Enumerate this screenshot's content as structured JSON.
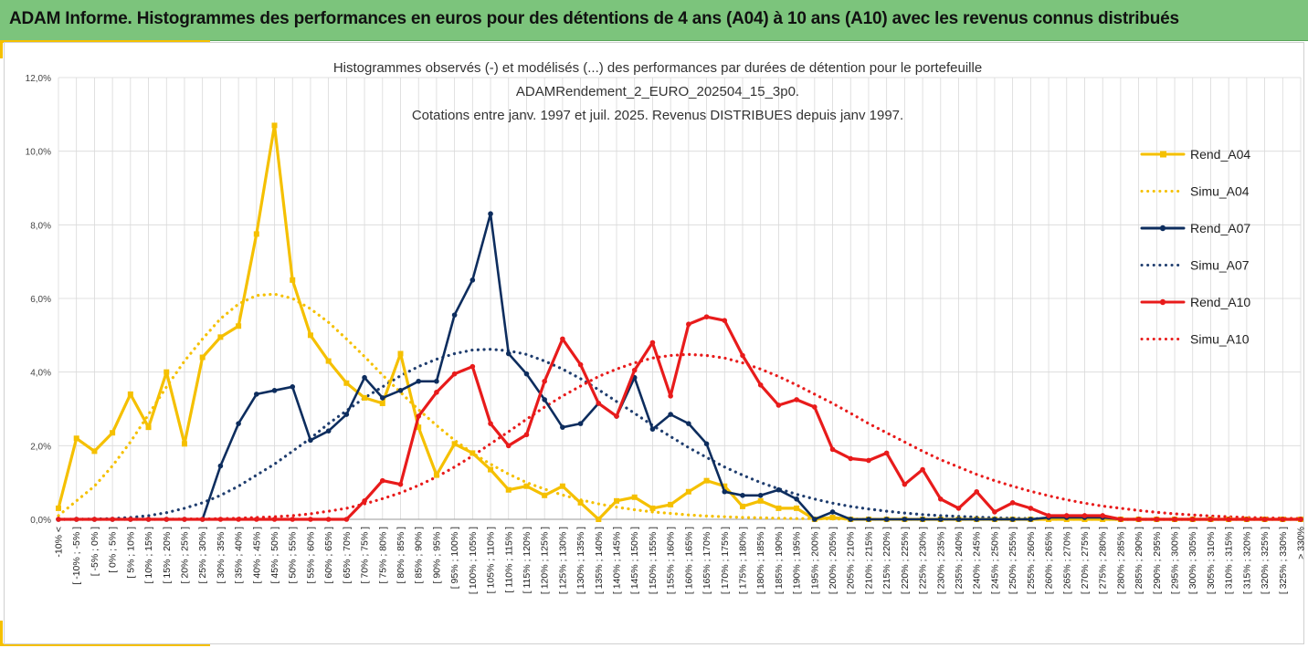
{
  "header": {
    "title": "ADAM Informe. Histogrammes des performances en euros pour des détentions de 4 ans (A04) à 10 ans (A10) avec les revenus connus distribués"
  },
  "chart_data": {
    "type": "line",
    "title_lines": [
      "Histogrammes observés (-) et modélisés (...) des performances par durées de détention pour le portefeuille",
      "ADAMRendement_2_EURO_202504_15_3p0.",
      "Cotations entre janv. 1997 et juil. 2025. Revenus DISTRIBUES depuis janv 1997."
    ],
    "ylim": [
      0,
      12
    ],
    "yticks": [
      "0,0%",
      "2,0%",
      "4,0%",
      "6,0%",
      "8,0%",
      "10,0%",
      "12,0%"
    ],
    "categories": [
      "-10% <",
      "[ -10% ; -5% ]",
      "[ -5% ; 0% ]",
      "[ 0% ; 5% ]",
      "[ 5% ; 10% ]",
      "[ 10% ; 15% ]",
      "[ 15% ; 20% ]",
      "[ 20% ; 25% ]",
      "[ 25% ; 30% ]",
      "[ 30% ; 35% ]",
      "[ 35% ; 40% ]",
      "[ 40% ; 45% ]",
      "[ 45% ; 50% ]",
      "[ 50% ; 55% ]",
      "[ 55% ; 60% ]",
      "[ 60% ; 65% ]",
      "[ 65% ; 70% ]",
      "[ 70% ; 75% ]",
      "[ 75% ; 80% ]",
      "[ 80% ; 85% ]",
      "[ 85% ; 90% ]",
      "[ 90% ; 95% ]",
      "[ 95% ; 100% ]",
      "[ 100% ; 105% ]",
      "[ 105% ; 110% ]",
      "[ 110% ; 115% ]",
      "[ 115% ; 120% ]",
      "[ 120% ; 125% ]",
      "[ 125% ; 130% ]",
      "[ 130% ; 135% ]",
      "[ 135% ; 140% ]",
      "[ 140% ; 145% ]",
      "[ 145% ; 150% ]",
      "[ 150% ; 155% ]",
      "[ 155% ; 160% ]",
      "[ 160% ; 165% ]",
      "[ 165% ; 170% ]",
      "[ 170% ; 175% ]",
      "[ 175% ; 180% ]",
      "[ 180% ; 185% ]",
      "[ 185% ; 190% ]",
      "[ 190% ; 195% ]",
      "[ 195% ; 200% ]",
      "[ 200% ; 205% ]",
      "[ 205% ; 210% ]",
      "[ 210% ; 215% ]",
      "[ 215% ; 220% ]",
      "[ 220% ; 225% ]",
      "[ 225% ; 230% ]",
      "[ 230% ; 235% ]",
      "[ 235% ; 240% ]",
      "[ 240% ; 245% ]",
      "[ 245% ; 250% ]",
      "[ 250% ; 255% ]",
      "[ 255% ; 260% ]",
      "[ 260% ; 265% ]",
      "[ 265% ; 270% ]",
      "[ 270% ; 275% ]",
      "[ 275% ; 280% ]",
      "[ 280% ; 285% ]",
      "[ 285% ; 290% ]",
      "[ 290% ; 295% ]",
      "[ 295% ; 300% ]",
      "[ 300% ; 305% ]",
      "[ 305% ; 310% ]",
      "[ 310% ; 315% ]",
      "[ 315% ; 320% ]",
      "[ 320% ; 325% ]",
      "[ 325% ; 330% ]",
      "> 330%"
    ],
    "legend_position": "right",
    "series": [
      {
        "name": "Rend_A04",
        "style": "solid",
        "color": "#f5c000",
        "marker": "square",
        "values": [
          0.3,
          2.2,
          1.85,
          2.35,
          3.4,
          2.5,
          4.0,
          2.05,
          4.4,
          4.95,
          5.25,
          7.75,
          10.7,
          6.5,
          5.0,
          4.3,
          3.7,
          3.3,
          3.15,
          4.5,
          2.5,
          1.2,
          2.05,
          1.8,
          1.35,
          0.8,
          0.9,
          0.65,
          0.9,
          0.45,
          0.0,
          0.5,
          0.6,
          0.3,
          0.4,
          0.75,
          1.05,
          0.9,
          0.35,
          0.5,
          0.3,
          0.3,
          0.0,
          0.05,
          0.0,
          0.0,
          0.0,
          0.0,
          0.0,
          0.0,
          0.0,
          0.0,
          0.0,
          0.0,
          0.0,
          0.0,
          0.0,
          0.0,
          0.0,
          0.0,
          0.0,
          0.0,
          0.0,
          0.0,
          0.0,
          0.0,
          0.0,
          0.0,
          0.0,
          0.0
        ]
      },
      {
        "name": "Simu_A04",
        "style": "dotted",
        "color": "#f5c000",
        "marker": "none",
        "values": [
          0.1,
          0.5,
          0.9,
          1.45,
          2.1,
          2.85,
          3.6,
          4.3,
          4.9,
          5.45,
          5.85,
          6.08,
          6.12,
          6.0,
          5.72,
          5.35,
          4.9,
          4.42,
          3.92,
          3.45,
          2.98,
          2.55,
          2.15,
          1.8,
          1.5,
          1.23,
          1.0,
          0.82,
          0.66,
          0.53,
          0.42,
          0.33,
          0.26,
          0.2,
          0.16,
          0.12,
          0.09,
          0.07,
          0.05,
          0.04,
          0.03,
          0.02,
          0.02,
          0.01,
          0.01,
          0.0,
          0.0,
          0.0,
          0.0,
          0.0,
          0.0,
          0.0,
          0.0,
          0.0,
          0.0,
          0.0,
          0.0,
          0.0,
          0.0,
          0.0,
          0.0,
          0.0,
          0.0,
          0.0,
          0.0,
          0.0,
          0.0,
          0.0,
          0.0,
          0.0
        ]
      },
      {
        "name": "Rend_A07",
        "style": "solid",
        "color": "#0d2d5e",
        "marker": "circle",
        "values": [
          0.0,
          0.0,
          0.0,
          0.0,
          0.0,
          0.0,
          0.0,
          0.0,
          0.0,
          1.45,
          2.6,
          3.4,
          3.5,
          3.6,
          2.15,
          2.4,
          2.85,
          3.85,
          3.3,
          3.5,
          3.75,
          3.75,
          5.55,
          6.5,
          8.3,
          4.5,
          3.95,
          3.25,
          2.5,
          2.6,
          3.15,
          2.8,
          3.85,
          2.45,
          2.85,
          2.6,
          2.05,
          0.75,
          0.65,
          0.65,
          0.8,
          0.55,
          0.0,
          0.2,
          0.0,
          0.0,
          0.0,
          0.0,
          0.0,
          0.0,
          0.0,
          0.0,
          0.0,
          0.0,
          0.0,
          0.05,
          0.05,
          0.05,
          0.05,
          0.0,
          0.0,
          0.0,
          0.0,
          0.0,
          0.0,
          0.0,
          0.0,
          0.0,
          0.0,
          0.0
        ]
      },
      {
        "name": "Simu_A07",
        "style": "dotted",
        "color": "#1f3d6e",
        "marker": "none",
        "values": [
          0.0,
          0.0,
          0.01,
          0.02,
          0.05,
          0.1,
          0.18,
          0.3,
          0.45,
          0.65,
          0.9,
          1.2,
          1.5,
          1.85,
          2.2,
          2.6,
          2.95,
          3.3,
          3.6,
          3.9,
          4.15,
          4.35,
          4.5,
          4.6,
          4.62,
          4.58,
          4.48,
          4.3,
          4.08,
          3.82,
          3.52,
          3.2,
          2.88,
          2.55,
          2.25,
          1.95,
          1.68,
          1.42,
          1.2,
          1.0,
          0.83,
          0.68,
          0.55,
          0.44,
          0.35,
          0.28,
          0.22,
          0.17,
          0.13,
          0.1,
          0.08,
          0.06,
          0.04,
          0.03,
          0.02,
          0.02,
          0.01,
          0.01,
          0.0,
          0.0,
          0.0,
          0.0,
          0.0,
          0.0,
          0.0,
          0.0,
          0.0,
          0.0,
          0.0,
          0.0
        ]
      },
      {
        "name": "Rend_A10",
        "style": "solid",
        "color": "#e81b1b",
        "marker": "circle",
        "values": [
          0.0,
          0.0,
          0.0,
          0.0,
          0.0,
          0.0,
          0.0,
          0.0,
          0.0,
          0.0,
          0.0,
          0.0,
          0.0,
          0.0,
          0.0,
          0.0,
          0.0,
          0.5,
          1.05,
          0.95,
          2.8,
          3.45,
          3.95,
          4.15,
          2.6,
          2.0,
          2.3,
          3.75,
          4.9,
          4.2,
          3.15,
          2.8,
          4.05,
          4.8,
          3.35,
          5.3,
          5.5,
          5.4,
          4.45,
          3.65,
          3.1,
          3.25,
          3.05,
          1.9,
          1.65,
          1.6,
          1.8,
          0.95,
          1.35,
          0.55,
          0.3,
          0.75,
          0.2,
          0.45,
          0.3,
          0.1,
          0.1,
          0.1,
          0.1,
          0.0,
          0.0,
          0.0,
          0.0,
          0.0,
          0.0,
          0.0,
          0.0,
          0.0,
          0.0,
          0.0
        ]
      },
      {
        "name": "Simu_A10",
        "style": "dotted",
        "color": "#e81b1b",
        "marker": "none",
        "values": [
          0.0,
          0.0,
          0.0,
          0.0,
          0.0,
          0.0,
          0.0,
          0.01,
          0.01,
          0.02,
          0.03,
          0.05,
          0.07,
          0.1,
          0.15,
          0.22,
          0.3,
          0.42,
          0.56,
          0.72,
          0.92,
          1.15,
          1.42,
          1.72,
          2.05,
          2.38,
          2.72,
          3.05,
          3.35,
          3.62,
          3.88,
          4.08,
          4.25,
          4.38,
          4.45,
          4.48,
          4.45,
          4.38,
          4.25,
          4.08,
          3.88,
          3.65,
          3.4,
          3.15,
          2.88,
          2.6,
          2.35,
          2.1,
          1.85,
          1.62,
          1.42,
          1.22,
          1.05,
          0.9,
          0.76,
          0.64,
          0.53,
          0.44,
          0.36,
          0.3,
          0.24,
          0.19,
          0.15,
          0.12,
          0.09,
          0.07,
          0.05,
          0.04,
          0.03,
          0.02
        ]
      }
    ]
  }
}
